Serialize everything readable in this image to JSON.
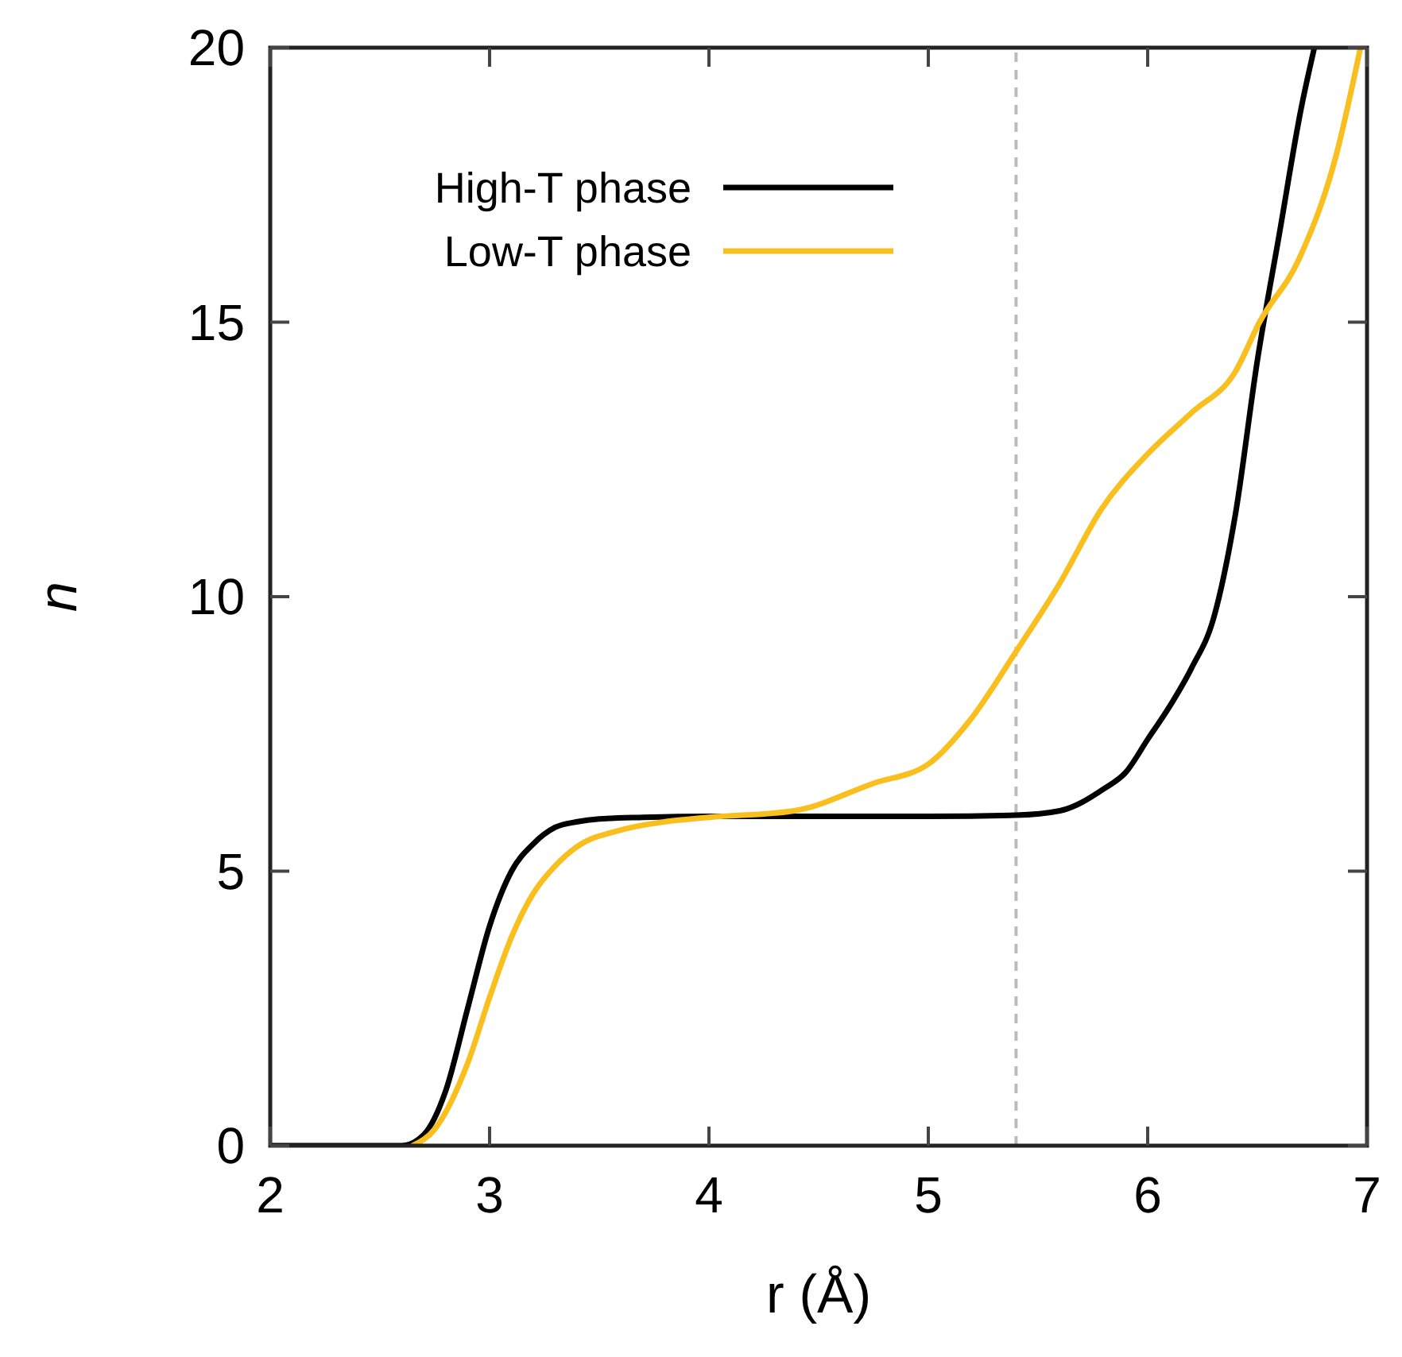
{
  "chart_data": {
    "type": "line",
    "xlabel": "r (Å)",
    "ylabel": "n",
    "xlim": [
      2,
      7
    ],
    "ylim": [
      0,
      20
    ],
    "xticks": [
      2,
      3,
      4,
      5,
      6,
      7
    ],
    "yticks": [
      0,
      5,
      10,
      15,
      20
    ],
    "legend": "top left",
    "grid": false,
    "line_style": "solid",
    "marker": "none",
    "ref_lines": [
      {
        "axis": "x",
        "value": 5.4,
        "color": "#bbbbbb",
        "line_style": "dashed"
      }
    ],
    "series": [
      {
        "name": "High-T phase",
        "color": "#000000",
        "x": [
          2,
          2.6,
          2.7,
          2.8,
          2.9,
          3.0,
          3.1,
          3.2,
          3.3,
          3.4,
          3.5,
          3.7,
          4.0,
          4.5,
          5.0,
          5.4,
          5.6,
          5.8,
          5.9,
          6.0,
          6.1,
          6.2,
          6.3,
          6.4,
          6.5,
          6.6,
          6.7,
          6.76
        ],
        "values": [
          0,
          0,
          0.2,
          1.0,
          2.5,
          4.0,
          5.0,
          5.5,
          5.8,
          5.9,
          5.95,
          5.98,
          6.0,
          6.0,
          6.0,
          6.02,
          6.1,
          6.5,
          6.8,
          7.4,
          8.0,
          8.7,
          9.6,
          11.5,
          14.3,
          16.6,
          18.9,
          20
        ]
      },
      {
        "name": "Low-T phase",
        "color": "#f8bf1f",
        "x": [
          2.65,
          2.75,
          2.9,
          3.0,
          3.1,
          3.2,
          3.3,
          3.4,
          3.6,
          3.8,
          4.0,
          4.39,
          4.75,
          5.0,
          5.19,
          5.4,
          5.6,
          5.79,
          6.0,
          6.2,
          6.4,
          6.51,
          6.69,
          6.86,
          6.97
        ],
        "values": [
          0,
          0.3,
          1.5,
          2.7,
          3.8,
          4.6,
          5.1,
          5.45,
          5.75,
          5.9,
          5.98,
          6.1,
          6.6,
          6.95,
          7.75,
          9.0,
          10.25,
          11.6,
          12.6,
          13.35,
          14.1,
          15.0,
          16.15,
          18.05,
          20
        ]
      }
    ]
  }
}
